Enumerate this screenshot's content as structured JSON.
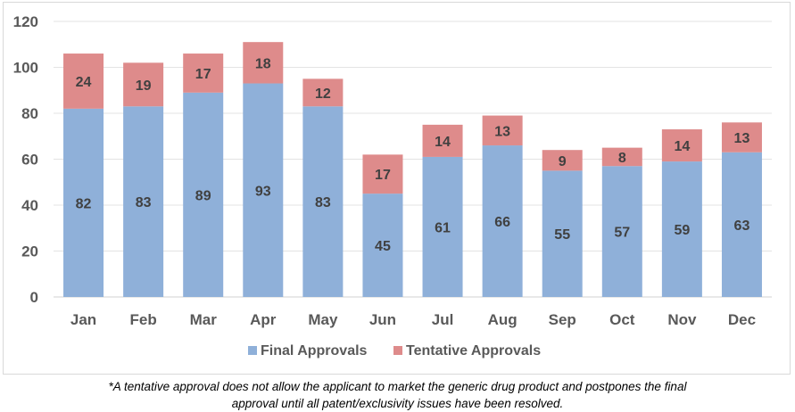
{
  "chart_data": {
    "type": "bar",
    "stacked": true,
    "categories": [
      "Jan",
      "Feb",
      "Mar",
      "Apr",
      "May",
      "Jun",
      "Jul",
      "Aug",
      "Sep",
      "Oct",
      "Nov",
      "Dec"
    ],
    "series": [
      {
        "name": "Final Approvals",
        "color": "#8fb0d9",
        "values": [
          82,
          83,
          89,
          93,
          83,
          45,
          61,
          66,
          55,
          57,
          59,
          63
        ]
      },
      {
        "name": "Tentative Approvals",
        "color": "#de8b8b",
        "values": [
          24,
          19,
          17,
          18,
          12,
          17,
          14,
          13,
          9,
          8,
          14,
          13
        ]
      }
    ],
    "ylim": [
      0,
      120
    ],
    "yticks": [
      "0",
      "20",
      "40",
      "60",
      "80",
      "100",
      "120"
    ],
    "grid": true,
    "legend_position": "bottom"
  },
  "footnote": {
    "line1": "*A tentative approval does not allow the applicant to market the generic drug product and postpones the final",
    "line2": "approval until all patent/exclusivity issues have been resolved."
  }
}
